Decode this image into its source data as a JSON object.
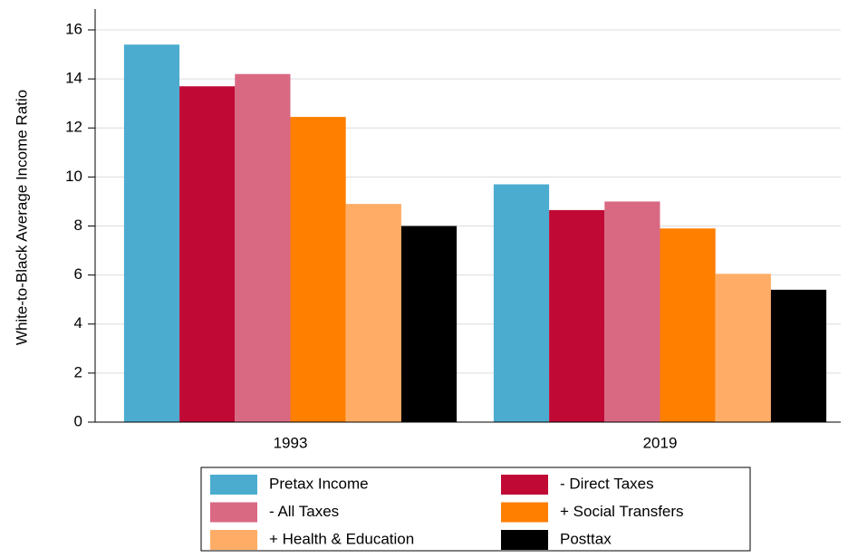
{
  "chart_data": {
    "type": "bar",
    "y_label": "White-to-Black Average Income Ratio",
    "categories": [
      "1993",
      "2019"
    ],
    "series": [
      {
        "name": "Pretax Income",
        "color": "#4bacd0",
        "values": [
          15.4,
          9.7
        ]
      },
      {
        "name": "- Direct Taxes",
        "color": "#c00a35",
        "values": [
          13.7,
          8.65
        ]
      },
      {
        "name": "- All Taxes",
        "color": "#d96983",
        "values": [
          14.2,
          9.0
        ]
      },
      {
        "name": "+ Social Transfers",
        "color": "#ff7f00",
        "values": [
          12.45,
          7.9
        ]
      },
      {
        "name": "+ Health & Education",
        "color": "#ffad66",
        "values": [
          8.9,
          6.05
        ]
      },
      {
        "name": "Posttax",
        "color": "#000000",
        "values": [
          8.0,
          5.4
        ]
      }
    ],
    "ylim": [
      0,
      16.85
    ],
    "yticks": [
      0,
      2,
      4,
      6,
      8,
      10,
      12,
      14,
      16
    ],
    "grid": true,
    "legend": "bottom"
  }
}
